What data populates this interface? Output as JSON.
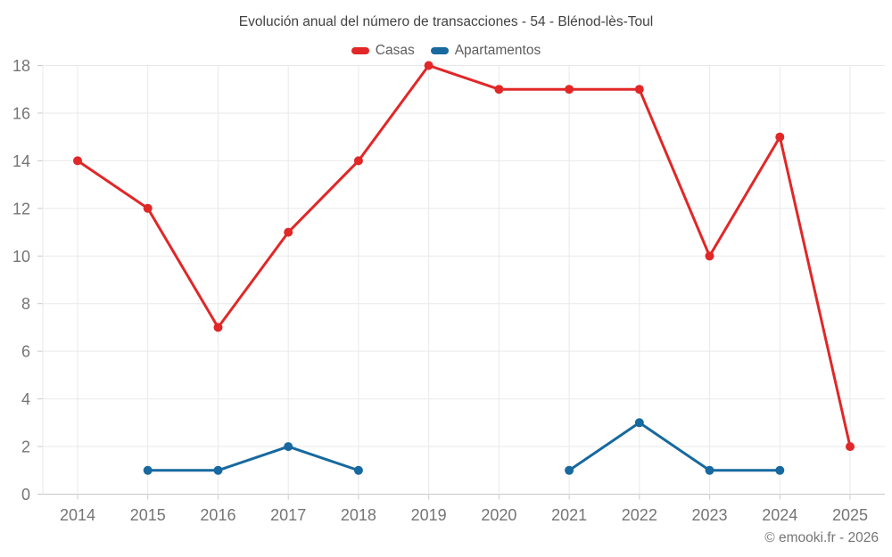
{
  "page": {
    "copyright": "© emooki.fr - 2026"
  },
  "style": {
    "background": "#ffffff",
    "grid_color": "#e9e9e9",
    "axis_color": "#c9c9c9",
    "tick_label_color": "#757575",
    "title_color": "#424242",
    "legend_text_color": "#5d5d5d"
  },
  "chart_data": {
    "type": "line",
    "title": "Evolución anual del número de transacciones - 54 - Blénod-lès-Toul",
    "x": [
      "2014",
      "2015",
      "2016",
      "2017",
      "2018",
      "2019",
      "2020",
      "2021",
      "2022",
      "2023",
      "2024",
      "2025"
    ],
    "series": [
      {
        "name": "Casas",
        "color": "#e12727",
        "values": [
          14,
          12,
          7,
          11,
          14,
          18,
          17,
          17,
          17,
          10,
          15,
          2
        ]
      },
      {
        "name": "Apartamentos",
        "color": "#17699f",
        "values": [
          null,
          1,
          1,
          2,
          1,
          null,
          null,
          1,
          3,
          1,
          1,
          null
        ]
      }
    ],
    "xlabel": "",
    "ylabel": "",
    "ylim": [
      0,
      18
    ],
    "ytick_step": 2,
    "grid": true,
    "legend_position": "top"
  }
}
